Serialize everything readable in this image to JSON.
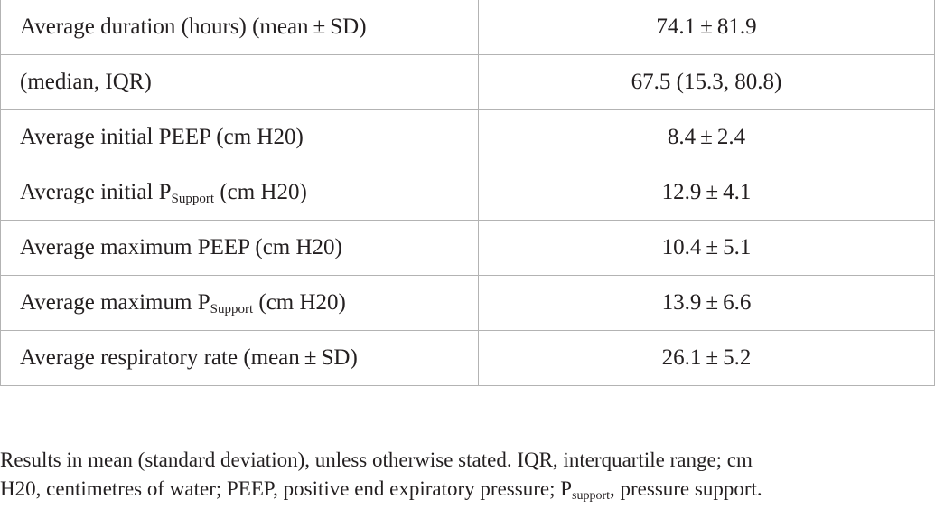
{
  "table": {
    "rows": [
      {
        "label_pre": "Average duration (hours) (mean ± SD)",
        "label_sub": "",
        "label_post": "",
        "value": "74.1 ± 81.9"
      },
      {
        "label_pre": "(median, IQR)",
        "label_sub": "",
        "label_post": "",
        "value": "67.5 (15.3, 80.8)"
      },
      {
        "label_pre": "Average initial PEEP (cm H20)",
        "label_sub": "",
        "label_post": "",
        "value": "8.4 ± 2.4"
      },
      {
        "label_pre": "Average initial P",
        "label_sub": "Support",
        "label_post": " (cm H20)",
        "value": "12.9 ± 4.1"
      },
      {
        "label_pre": "Average maximum PEEP (cm H20)",
        "label_sub": "",
        "label_post": "",
        "value": "10.4 ± 5.1"
      },
      {
        "label_pre": "Average maximum P",
        "label_sub": "Support",
        "label_post": " (cm H20)",
        "value": "13.9 ± 6.6"
      },
      {
        "label_pre": "Average respiratory rate (mean ± SD)",
        "label_sub": "",
        "label_post": "",
        "value": "26.1 ± 5.2"
      }
    ]
  },
  "footnote": {
    "line1": "Results in mean (standard deviation), unless otherwise stated. IQR, interquartile range; cm",
    "line2_pre": "H20, centimetres of water; PEEP, positive end expiratory pressure; P",
    "line2_sub": "support",
    "line2_post": ", pressure support."
  }
}
